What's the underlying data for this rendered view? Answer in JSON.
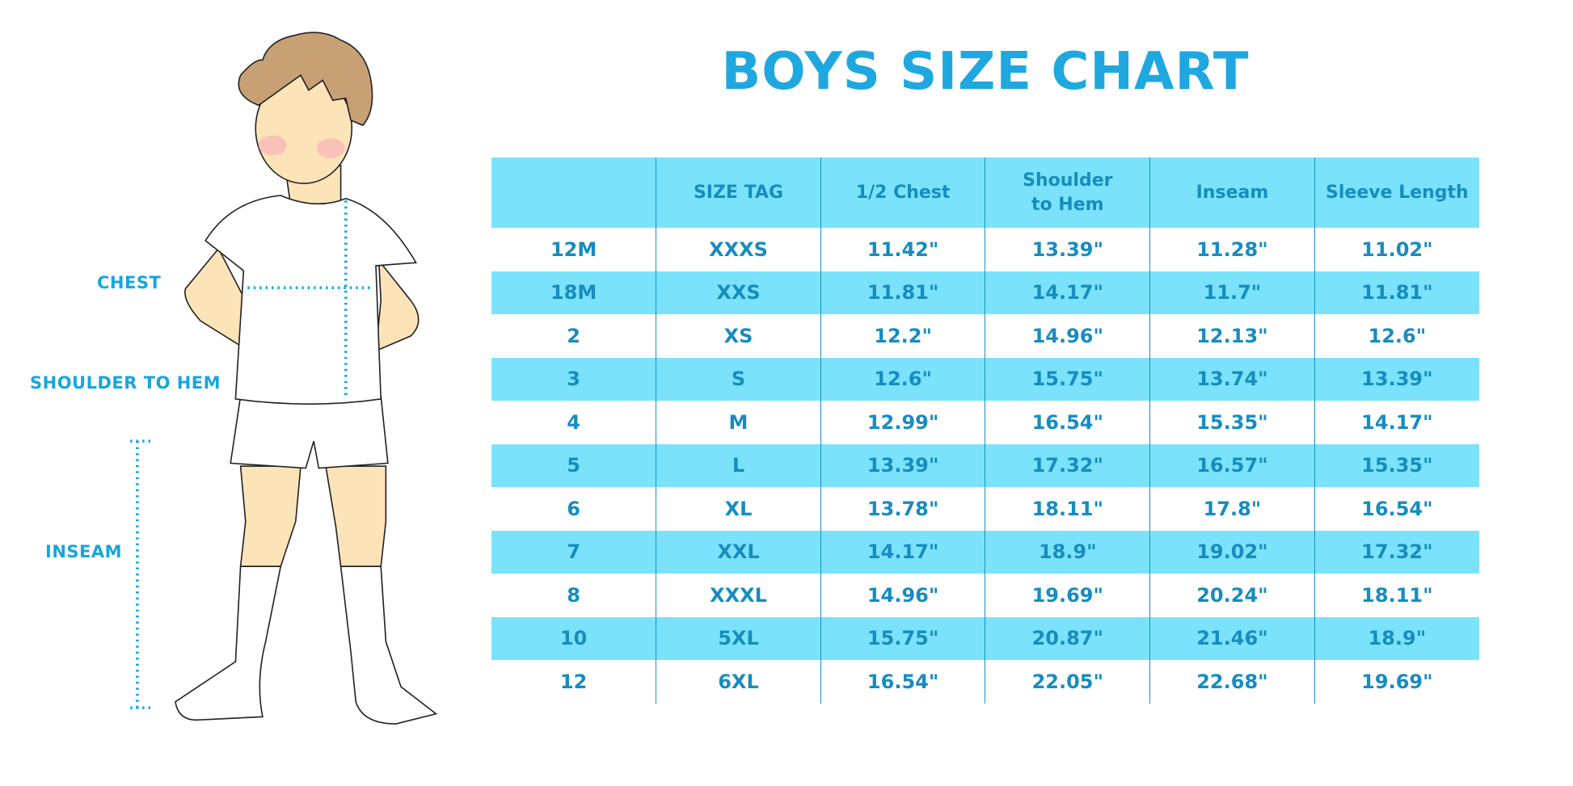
{
  "title": "BOYS SIZE CHART",
  "figure_labels": {
    "chest": "CHEST",
    "shoulder_to_hem": "SHOULDER TO HEM",
    "inseam": "INSEAM"
  },
  "colors": {
    "accent": "#1ea8df",
    "header_bg": "#7ae3fb",
    "text": "#178cbf"
  },
  "table": {
    "headers": [
      "",
      "SIZE TAG",
      "1/2 Chest",
      "Shoulder to Hem",
      "Inseam",
      "Sleeve Length"
    ],
    "rows": [
      [
        "12M",
        "XXXS",
        "11.42\"",
        "13.39\"",
        "11.28\"",
        "11.02\""
      ],
      [
        "18M",
        "XXS",
        "11.81\"",
        "14.17\"",
        "11.7\"",
        "11.81\""
      ],
      [
        "2",
        "XS",
        "12.2\"",
        "14.96\"",
        "12.13\"",
        "12.6\""
      ],
      [
        "3",
        "S",
        "12.6\"",
        "15.75\"",
        "13.74\"",
        "13.39\""
      ],
      [
        "4",
        "M",
        "12.99\"",
        "16.54\"",
        "15.35\"",
        "14.17\""
      ],
      [
        "5",
        "L",
        "13.39\"",
        "17.32\"",
        "16.57\"",
        "15.35\""
      ],
      [
        "6",
        "XL",
        "13.78\"",
        "18.11\"",
        "17.8\"",
        "16.54\""
      ],
      [
        "7",
        "XXL",
        "14.17\"",
        "18.9\"",
        "19.02\"",
        "17.32\""
      ],
      [
        "8",
        "XXXL",
        "14.96\"",
        "19.69\"",
        "20.24\"",
        "18.11\""
      ],
      [
        "10",
        "5XL",
        "15.75\"",
        "20.87\"",
        "21.46\"",
        "18.9\""
      ],
      [
        "12",
        "6XL",
        "16.54\"",
        "22.05\"",
        "22.68\"",
        "19.69\""
      ]
    ]
  }
}
